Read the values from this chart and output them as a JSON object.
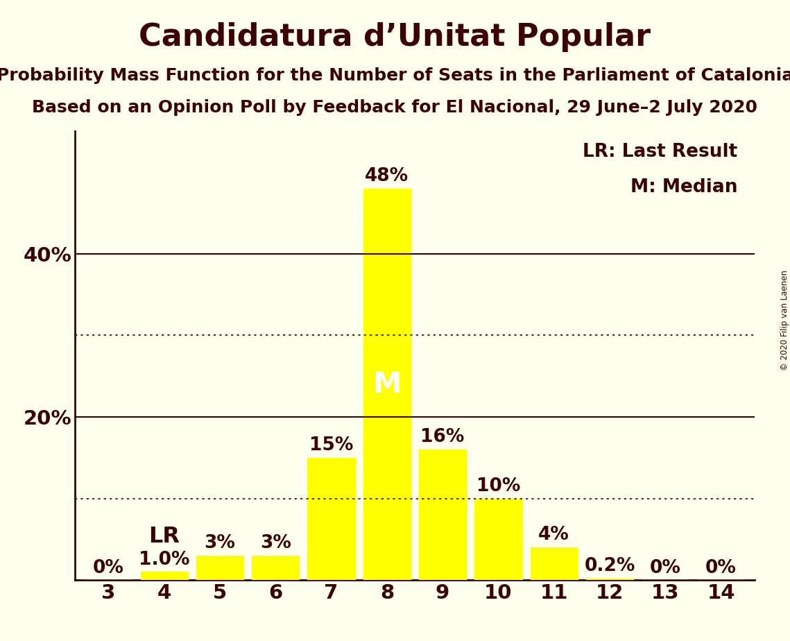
{
  "title": "Candidatura d’Unitat Popular",
  "subtitle1": "Probability Mass Function for the Number of Seats in the Parliament of Catalonia",
  "subtitle2": "Based on an Opinion Poll by Feedback for El Nacional, 29 June–2 July 2020",
  "copyright": "© 2020 Filip van Laenen",
  "categories": [
    3,
    4,
    5,
    6,
    7,
    8,
    9,
    10,
    11,
    12,
    13,
    14
  ],
  "values": [
    0.0,
    1.0,
    3.0,
    3.0,
    15.0,
    48.0,
    16.0,
    10.0,
    4.0,
    0.2,
    0.0,
    0.0
  ],
  "bar_color": "#ffff00",
  "bar_edge_color": "#ffff00",
  "background_color": "#fffff0",
  "text_color": "#3d0000",
  "bar_label_format": [
    "0%",
    "1.0%",
    "3%",
    "3%",
    "15%",
    "48%",
    "16%",
    "10%",
    "4%",
    "0.2%",
    "0%",
    "0%"
  ],
  "dotted_lines": [
    10.0,
    30.0
  ],
  "solid_lines": [
    20.0,
    40.0
  ],
  "ylim": [
    0,
    55
  ],
  "median_bar": 8,
  "median_label": "M",
  "lr_bar": 4,
  "lr_label": "LR",
  "legend_lr": "LR: Last Result",
  "legend_m": "M: Median",
  "title_fontsize": 32,
  "subtitle_fontsize": 18,
  "tick_fontsize": 21,
  "bar_label_fontsize": 19,
  "legend_fontsize": 19,
  "ylabel_fontsize": 21
}
